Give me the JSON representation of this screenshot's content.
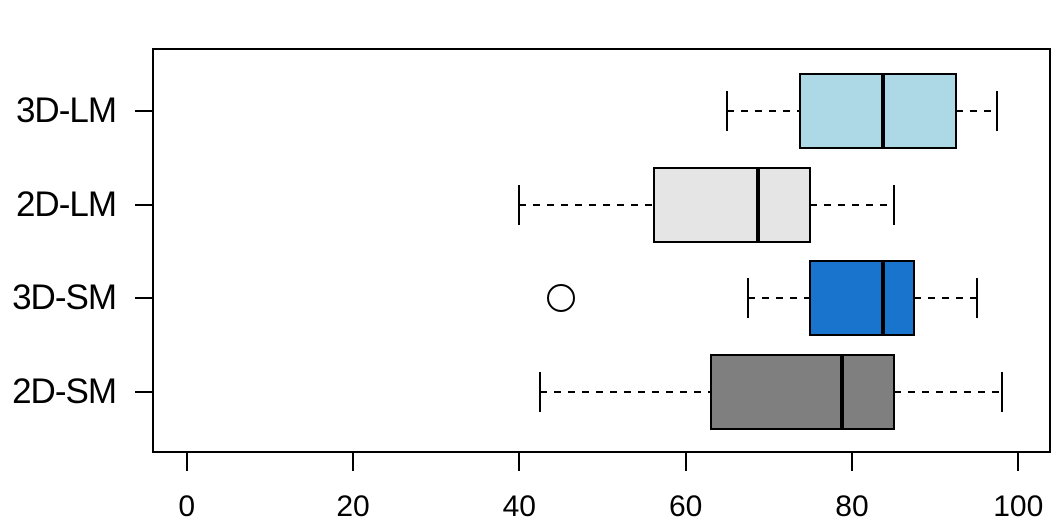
{
  "figure": {
    "background_color": "#ffffff",
    "frame_color": "#000000"
  },
  "chart_data": {
    "type": "boxplot",
    "orientation": "horizontal",
    "title": "",
    "xlabel": "",
    "ylabel": "",
    "xlim": [
      -4,
      104
    ],
    "xticks": [
      0,
      20,
      40,
      60,
      80,
      100
    ],
    "grid": false,
    "legend": "none",
    "whisker_line_style": "dashed",
    "categories_top_to_bottom": [
      "3D-LM",
      "2D-LM",
      "3D-SM",
      "2D-SM"
    ],
    "series": [
      {
        "name": "3D-LM",
        "whisker_low": 65,
        "q1": 73.75,
        "median": 83.75,
        "q3": 92.5,
        "whisker_high": 97.5,
        "outliers": [],
        "fill_color": "#ADD8E6"
      },
      {
        "name": "2D-LM",
        "whisker_low": 40,
        "q1": 56.25,
        "median": 68.75,
        "q3": 75,
        "whisker_high": 85,
        "outliers": [],
        "fill_color": "#E5E5E5"
      },
      {
        "name": "3D-SM",
        "whisker_low": 67.5,
        "q1": 75,
        "median": 83.75,
        "q3": 87.5,
        "whisker_high": 95,
        "outliers": [
          45
        ],
        "fill_color": "#1874CD"
      },
      {
        "name": "2D-SM",
        "whisker_low": 42.5,
        "q1": 63,
        "median": 78.75,
        "q3": 85,
        "whisker_high": 98,
        "outliers": [],
        "fill_color": "#7F7F7F"
      }
    ]
  }
}
